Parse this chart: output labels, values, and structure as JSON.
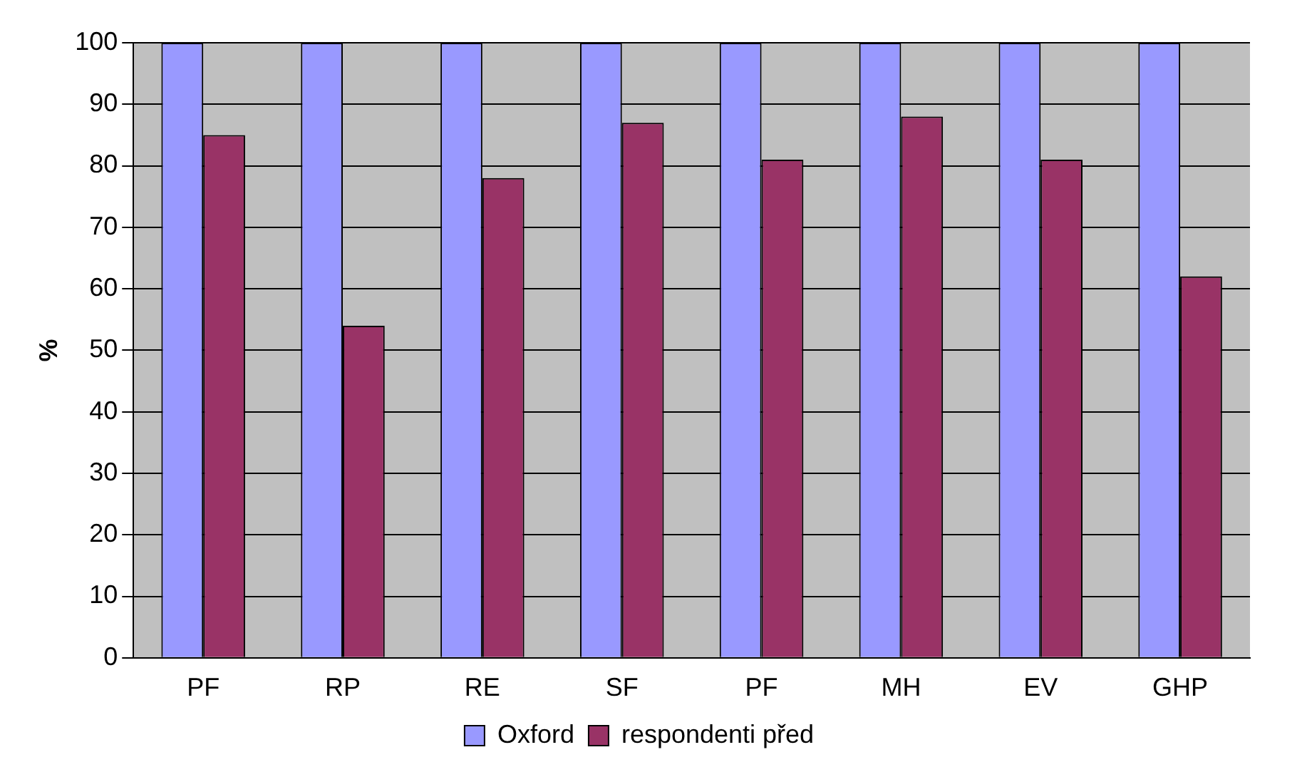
{
  "chart_data": {
    "type": "bar",
    "ylabel": "%",
    "categories": [
      "PF",
      "RP",
      "RE",
      "SF",
      "PF",
      "MH",
      "EV",
      "GHP"
    ],
    "series": [
      {
        "name": "Oxford",
        "color": "#9999ff",
        "values": [
          100,
          100,
          100,
          100,
          100,
          100,
          100,
          100
        ]
      },
      {
        "name": "respondenti před",
        "color": "#993366",
        "values": [
          85,
          54,
          78,
          87,
          81,
          88,
          81,
          62
        ]
      }
    ],
    "ylim": [
      0,
      100
    ],
    "yticks": [
      0,
      10,
      20,
      30,
      40,
      50,
      60,
      70,
      80,
      90,
      100
    ],
    "grid": "y",
    "legend": "bottom"
  }
}
